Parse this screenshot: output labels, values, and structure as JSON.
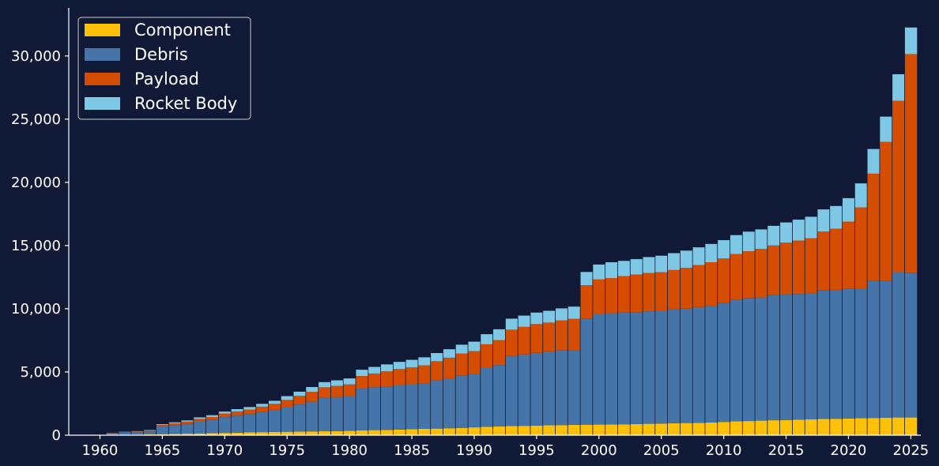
{
  "chart_data": {
    "type": "bar",
    "stacked": true,
    "title": "",
    "xlabel": "",
    "ylabel": "",
    "xlim": [
      1957.5,
      2025.8
    ],
    "ylim": [
      0,
      33800
    ],
    "x_ticks": [
      1960,
      1965,
      1970,
      1975,
      1980,
      1985,
      1990,
      1995,
      2000,
      2005,
      2010,
      2015,
      2020,
      2025
    ],
    "y_ticks": [
      0,
      5000,
      10000,
      15000,
      20000,
      25000,
      30000
    ],
    "y_tick_labels": [
      "0",
      "5,000",
      "10,000",
      "15,000",
      "20,000",
      "25,000",
      "30,000"
    ],
    "grid": false,
    "legend_position": "top-left",
    "x": [
      1961,
      1962,
      1963,
      1964,
      1965,
      1966,
      1967,
      1968,
      1969,
      1970,
      1971,
      1972,
      1973,
      1974,
      1975,
      1976,
      1977,
      1978,
      1979,
      1980,
      1981,
      1982,
      1983,
      1984,
      1985,
      1986,
      1987,
      1988,
      1989,
      1990,
      1991,
      1992,
      1993,
      1994,
      1995,
      1996,
      1997,
      1998,
      1999,
      2000,
      2001,
      2002,
      2003,
      2004,
      2005,
      2006,
      2007,
      2008,
      2009,
      2010,
      2011,
      2012,
      2013,
      2014,
      2015,
      2016,
      2017,
      2018,
      2019,
      2020,
      2021,
      2022,
      2023,
      2024,
      2025
    ],
    "series": [
      {
        "name": "Component",
        "color": "#ffc107",
        "values": [
          20,
          30,
          40,
          60,
          80,
          100,
          120,
          140,
          160,
          180,
          200,
          220,
          240,
          260,
          270,
          280,
          300,
          310,
          320,
          340,
          380,
          400,
          420,
          450,
          480,
          500,
          520,
          550,
          580,
          620,
          660,
          700,
          720,
          740,
          760,
          780,
          800,
          820,
          830,
          840,
          850,
          860,
          880,
          900,
          920,
          940,
          960,
          980,
          1000,
          1050,
          1100,
          1120,
          1150,
          1180,
          1200,
          1220,
          1250,
          1280,
          1300,
          1320,
          1340,
          1360,
          1380,
          1400,
          1400
        ]
      },
      {
        "name": "Debris",
        "color": "#4575a8",
        "values": [
          130,
          170,
          190,
          230,
          620,
          700,
          780,
          950,
          1050,
          1250,
          1350,
          1450,
          1600,
          1750,
          1950,
          2150,
          2350,
          2650,
          2700,
          2750,
          3300,
          3400,
          3450,
          3550,
          3550,
          3600,
          3800,
          3950,
          4150,
          4250,
          4650,
          4850,
          5550,
          5650,
          5750,
          5850,
          5900,
          5900,
          8400,
          8750,
          8800,
          8850,
          8850,
          8900,
          8950,
          9000,
          9050,
          9150,
          9250,
          9400,
          9600,
          9700,
          9750,
          9900,
          9950,
          9950,
          10000,
          10200,
          10200,
          10250,
          10250,
          10850,
          10850,
          11500,
          11450
        ]
      },
      {
        "name": "Payload",
        "color": "#d44d00",
        "values": [
          30,
          50,
          60,
          80,
          110,
          140,
          170,
          200,
          230,
          280,
          330,
          360,
          420,
          470,
          570,
          680,
          780,
          830,
          880,
          930,
          1000,
          1080,
          1180,
          1230,
          1330,
          1430,
          1530,
          1630,
          1730,
          1780,
          1880,
          1980,
          2080,
          2180,
          2280,
          2280,
          2380,
          2480,
          2630,
          2730,
          2780,
          2880,
          2980,
          3030,
          3030,
          3130,
          3230,
          3330,
          3430,
          3530,
          3630,
          3730,
          3830,
          3930,
          4080,
          4230,
          4330,
          4630,
          4830,
          5330,
          6430,
          8480,
          10970,
          13550,
          17300
        ]
      },
      {
        "name": "Rocket Body",
        "color": "#7ec8e6",
        "values": [
          10,
          20,
          30,
          40,
          60,
          80,
          100,
          120,
          140,
          160,
          180,
          200,
          220,
          240,
          300,
          330,
          380,
          410,
          440,
          470,
          500,
          520,
          550,
          570,
          600,
          630,
          650,
          670,
          700,
          750,
          800,
          850,
          870,
          890,
          910,
          930,
          950,
          970,
          1050,
          1180,
          1250,
          1200,
          1220,
          1260,
          1300,
          1330,
          1360,
          1400,
          1450,
          1450,
          1500,
          1550,
          1550,
          1550,
          1600,
          1650,
          1700,
          1750,
          1800,
          1850,
          1900,
          1950,
          2000,
          2100,
          2100
        ]
      }
    ]
  }
}
